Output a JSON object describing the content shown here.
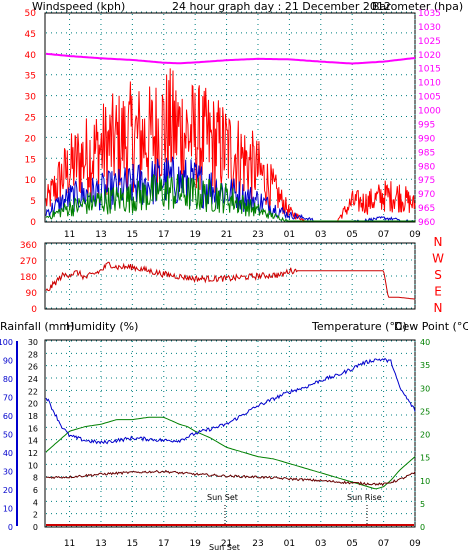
{
  "header": {
    "wind_title": "Windspeed (kph)",
    "center_title": "24 hour graph day : 21 December 2012",
    "baro_title": "Barometer (hpa)"
  },
  "lower_header": {
    "rain_title": "Rainfall (mm)",
    "hum_title": "Humidity (%)",
    "temp_title": "Temperature (°C)",
    "dew_title": "Dew Point (°C)"
  },
  "annotations": {
    "sun_set": "Sun Set",
    "sun_rise": "Sun Rise",
    "bottom_set": "Sun Set"
  },
  "colors": {
    "gust": "#ff0000",
    "wind": "#0000cc",
    "avg_wind": "#008000",
    "barometer": "#ff00ff",
    "direction": "#cc0000",
    "humidity": "#008000",
    "temperature": "#0000cc",
    "dew_point": "#660000",
    "rainfall": "#cc0000",
    "axis_red": "#ff0000",
    "axis_blue": "#0000cc",
    "axis_green": "#008000",
    "grid": "#008080"
  },
  "chart_data": [
    {
      "type": "line",
      "name": "wind-barometer",
      "title": "24 hour graph day : 21 December 2012",
      "xlabel": "",
      "x_ticks": [
        "11",
        "13",
        "15",
        "17",
        "19",
        "21",
        "23",
        "01",
        "03",
        "05",
        "07",
        "09"
      ],
      "y_left": {
        "label": "Windspeed (kph)",
        "ticks": [
          0,
          5,
          10,
          15,
          20,
          25,
          30,
          35,
          40,
          45,
          50
        ],
        "range": [
          0,
          50
        ]
      },
      "y_right": {
        "label": "Barometer (hpa)",
        "ticks": [
          960,
          965,
          970,
          975,
          980,
          985,
          990,
          995,
          1000,
          1005,
          1010,
          1015,
          1020,
          1025,
          1030,
          1035
        ],
        "range": [
          960,
          1035
        ]
      },
      "grid": true,
      "series": [
        {
          "name": "Barometer",
          "x": [
            9.5,
            11,
            13,
            15,
            17,
            18,
            19,
            21,
            23,
            1,
            3,
            5,
            7,
            9
          ],
          "values": [
            1020,
            1019.2,
            1018.4,
            1017.8,
            1016.8,
            1016.6,
            1016.9,
            1017.7,
            1018.2,
            1018,
            1017.2,
            1016.5,
            1017.2,
            1018.5
          ]
        },
        {
          "name": "Gust",
          "x": [
            9.5,
            10.5,
            11.5,
            13,
            15,
            16,
            17,
            18,
            19,
            20,
            21,
            22,
            23,
            0,
            1,
            2,
            3,
            4,
            5,
            6,
            7,
            8,
            9
          ],
          "values": [
            6,
            14,
            19,
            23,
            27,
            26,
            30,
            29,
            27,
            25,
            23,
            20,
            16,
            10,
            3,
            0,
            0,
            0,
            6,
            6,
            8,
            8,
            5
          ]
        },
        {
          "name": "Windspeed",
          "x": [
            9.5,
            11,
            13,
            15,
            17,
            19,
            21,
            23,
            1,
            3,
            5,
            7,
            9
          ],
          "values": [
            3,
            8,
            10,
            12,
            14,
            13,
            10,
            7,
            2,
            0,
            0,
            1,
            0
          ]
        },
        {
          "name": "Average",
          "x": [
            9.5,
            11,
            13,
            15,
            17,
            19,
            21,
            23,
            1,
            3,
            5,
            7,
            9
          ],
          "values": [
            1,
            4,
            6,
            7,
            9,
            8,
            7,
            3,
            0,
            0,
            0,
            0,
            0
          ]
        }
      ]
    },
    {
      "type": "line",
      "name": "wind-direction",
      "x_ticks": [
        "11",
        "13",
        "15",
        "17",
        "19",
        "21",
        "23",
        "01",
        "03",
        "05",
        "07",
        "09"
      ],
      "y_left": {
        "ticks": [
          0,
          90,
          180,
          270,
          360
        ],
        "range": [
          0,
          360
        ]
      },
      "y_right": {
        "labels": [
          "N",
          "W",
          "S",
          "E",
          "N"
        ]
      },
      "grid": true,
      "series": [
        {
          "name": "Direction",
          "x": [
            9.5,
            10.5,
            11.5,
            12,
            13,
            13.5,
            14,
            15,
            17,
            19,
            21,
            23,
            24,
            0.5,
            1,
            3,
            5,
            7,
            7.3,
            8,
            9
          ],
          "values": [
            90,
            180,
            200,
            170,
            210,
            250,
            230,
            230,
            190,
            165,
            165,
            180,
            185,
            185,
            210,
            210,
            210,
            210,
            60,
            60,
            50
          ]
        }
      ]
    },
    {
      "type": "line",
      "name": "temperature-humidity-rain",
      "x_ticks": [
        "11",
        "13",
        "15",
        "17",
        "19",
        "21",
        "23",
        "01",
        "03",
        "05",
        "07",
        "09"
      ],
      "y_rain": {
        "label": "Rainfall (mm)",
        "ticks": [
          0,
          10,
          20,
          30,
          40,
          50,
          60,
          70,
          80,
          90,
          100
        ]
      },
      "y_humidity": {
        "label": "Humidity (%)",
        "ticks": [
          0,
          2,
          4,
          6,
          8,
          10,
          12,
          14,
          16,
          18,
          20,
          22,
          24,
          26,
          28,
          30
        ]
      },
      "y_right": {
        "label": "Temperature (°C) / Dew Point (°C)",
        "ticks": [
          0,
          5,
          10,
          15,
          20,
          25,
          30,
          35,
          40
        ],
        "range": [
          0,
          40
        ]
      },
      "grid": true,
      "series": [
        {
          "name": "Humidity",
          "x": [
            9.5,
            10.5,
            11,
            12,
            13,
            14,
            15,
            16,
            17,
            18,
            18.5,
            19,
            20,
            21,
            22,
            23,
            24,
            1,
            2,
            3,
            4,
            5,
            6,
            6.5,
            7,
            7.5,
            8,
            9
          ],
          "values": [
            16,
            19,
            20.5,
            21.5,
            22,
            23,
            23,
            23.5,
            23.5,
            22,
            21.5,
            20.5,
            19,
            17,
            16,
            15,
            14.5,
            13.5,
            12.5,
            11.5,
            10.5,
            9.5,
            8.5,
            8,
            8.5,
            10,
            12,
            15
          ]
        },
        {
          "name": "Temperature",
          "x": [
            9.5,
            10.5,
            11,
            12,
            13,
            14,
            15,
            16,
            17,
            18,
            19,
            20,
            21,
            22,
            23,
            24,
            1,
            2,
            3,
            4,
            5,
            5.5,
            6,
            6.5,
            7,
            7.5,
            8,
            9
          ],
          "values": [
            28,
            21.5,
            19.5,
            18.5,
            18,
            18.5,
            19,
            18.8,
            18.5,
            18.5,
            20,
            21,
            22,
            24,
            26,
            27.5,
            29,
            30,
            31.5,
            32.5,
            34,
            35,
            35.5,
            36,
            36,
            35.5,
            30,
            25
          ]
        },
        {
          "name": "Dew Point",
          "x": [
            9.5,
            11,
            13,
            15,
            17,
            19,
            21,
            23,
            1,
            3,
            5,
            7,
            8,
            9
          ],
          "values": [
            10.5,
            10.6,
            11.2,
            11.6,
            11.8,
            11.2,
            10.8,
            10.6,
            10.2,
            9.8,
            9.3,
            9,
            10,
            11.5
          ]
        },
        {
          "name": "Rainfall",
          "x": [
            9.5,
            9
          ],
          "values": [
            0,
            0
          ]
        }
      ]
    }
  ]
}
